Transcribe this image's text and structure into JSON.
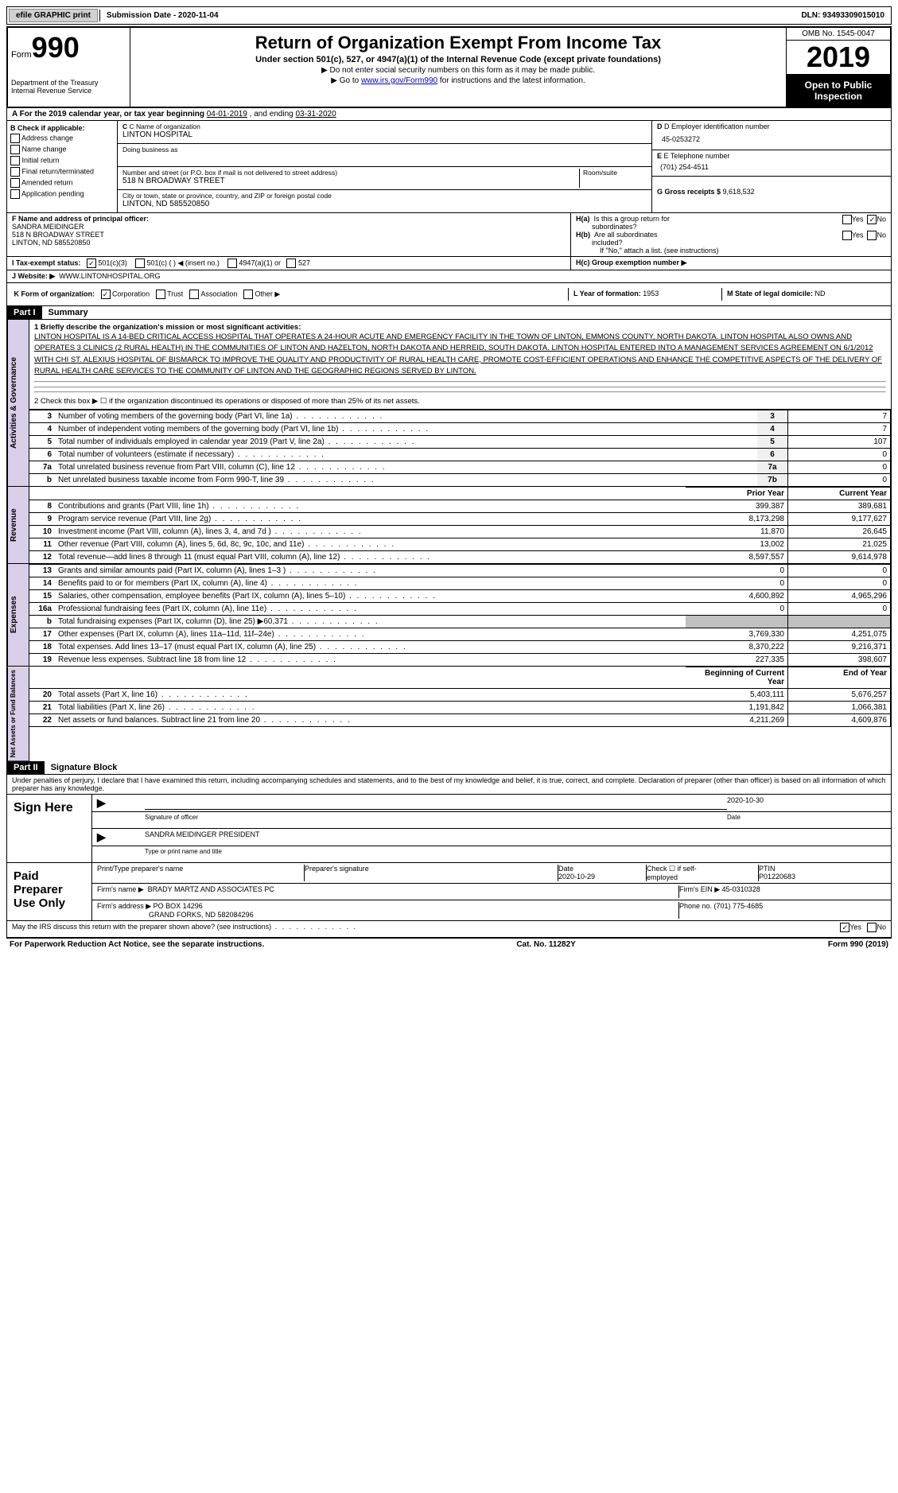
{
  "topbar": {
    "efile": "efile GRAPHIC print",
    "submission_label": "Submission Date - ",
    "submission_date": "2020-11-04",
    "dln_label": "DLN: ",
    "dln": "93493309015010"
  },
  "header": {
    "form_prefix": "Form",
    "form_number": "990",
    "dept": "Department of the Treasury\nInternal Revenue Service",
    "title": "Return of Organization Exempt From Income Tax",
    "subtitle": "Under section 501(c), 527, or 4947(a)(1) of the Internal Revenue Code (except private foundations)",
    "note1": "▶ Do not enter social security numbers on this form as it may be made public.",
    "note2_pre": "▶ Go to ",
    "note2_link": "www.irs.gov/Form990",
    "note2_post": " for instructions and the latest information.",
    "omb": "OMB No. 1545-0047",
    "year": "2019",
    "inspection": "Open to Public Inspection"
  },
  "rowA": {
    "prefix": "A For the 2019 calendar year, or tax year beginning ",
    "begin": "04-01-2019",
    "mid": "   , and ending ",
    "end": "03-31-2020"
  },
  "colB": {
    "header": "B Check if applicable:",
    "items": [
      "Address change",
      "Name change",
      "Initial return",
      "Final return/terminated",
      "Amended return",
      "Application pending"
    ]
  },
  "colC": {
    "name_label": "C Name of organization",
    "name": "LINTON HOSPITAL",
    "dba_label": "Doing business as",
    "dba": "",
    "street_label": "Number and street (or P.O. box if mail is not delivered to street address)",
    "street": "518 N BROADWAY STREET",
    "room_label": "Room/suite",
    "city_label": "City or town, state or province, country, and ZIP or foreign postal code",
    "city": "LINTON, ND  585520850"
  },
  "colD": {
    "ein_label": "D Employer identification number",
    "ein": "45-0253272",
    "phone_label": "E Telephone number",
    "phone": "(701) 254-4511",
    "gross_label": "G Gross receipts $ ",
    "gross": "9,618,532"
  },
  "rowF": {
    "label": "F  Name and address of principal officer:",
    "name": "SANDRA MEIDINGER",
    "street": "518 N BROADWAY STREET",
    "city": "LINTON, ND  585520850"
  },
  "rowH": {
    "ha_label": "H(a)  Is this a group return for subordinates?",
    "hb_label": "H(b)  Are all subordinates included?",
    "hb_note": "If \"No,\" attach a list. (see instructions)",
    "hc_label": "H(c)  Group exemption number ▶",
    "yes": "Yes",
    "no": "No"
  },
  "rowI": {
    "label": "I   Tax-exempt status:",
    "opt1": "501(c)(3)",
    "opt2": "501(c) (  ) ◀ (insert no.)",
    "opt3": "4947(a)(1) or",
    "opt4": "527"
  },
  "rowJ": {
    "label": "J   Website: ▶",
    "value": "WWW.LINTONHOSPITAL.ORG"
  },
  "rowK": {
    "label": "K Form of organization:",
    "opts": [
      "Corporation",
      "Trust",
      "Association",
      "Other ▶"
    ],
    "L_label": "L Year of formation: ",
    "L_val": "1953",
    "M_label": "M State of legal domicile: ",
    "M_val": "ND"
  },
  "part1": {
    "header": "Part I",
    "title": "Summary",
    "tab_ag": "Activities & Governance",
    "tab_rev": "Revenue",
    "tab_exp": "Expenses",
    "tab_net": "Net Assets or Fund Balances",
    "line1_label": "1   Briefly describe the organization's mission or most significant activities:",
    "mission": "LINTON HOSPITAL IS A 14-BED CRITICAL ACCESS HOSPITAL THAT OPERATES A 24-HOUR ACUTE AND EMERGENCY FACILITY IN THE TOWN OF LINTON, EMMONS COUNTY, NORTH DAKOTA. LINTON HOSPITAL ALSO OWNS AND OPERATES 3 CLINICS (2 RURAL HEALTH) IN THE COMMUNITIES OF LINTON AND HAZELTON, NORTH DAKOTA AND HERREID, SOUTH DAKOTA. LINTON HOSPITAL ENTERED INTO A MANAGEMENT SERVICES AGREEMENT ON 6/1/2012 WITH CHI ST. ALEXIUS HOSPITAL OF BISMARCK TO IMPROVE THE QUALITY AND PRODUCTIVITY OF RURAL HEALTH CARE, PROMOTE COST-EFFICIENT OPERATIONS AND ENHANCE THE COMPETITIVE ASPECTS OF THE DELIVERY OF RURAL HEALTH CARE SERVICES TO THE COMMUNITY OF LINTON AND THE GEOGRAPHIC REGIONS SERVED BY LINTON.",
    "line2": "2   Check this box ▶ ☐  if the organization discontinued its operations or disposed of more than 25% of its net assets.",
    "prior_year": "Prior Year",
    "current_year": "Current Year",
    "begin_year": "Beginning of Current Year",
    "end_year": "End of Year",
    "rows_ag": [
      {
        "n": "3",
        "d": "Number of voting members of the governing body (Part VI, line 1a)",
        "box": "3",
        "v": "7"
      },
      {
        "n": "4",
        "d": "Number of independent voting members of the governing body (Part VI, line 1b)",
        "box": "4",
        "v": "7"
      },
      {
        "n": "5",
        "d": "Total number of individuals employed in calendar year 2019 (Part V, line 2a)",
        "box": "5",
        "v": "107"
      },
      {
        "n": "6",
        "d": "Total number of volunteers (estimate if necessary)",
        "box": "6",
        "v": "0"
      },
      {
        "n": "7a",
        "d": "Total unrelated business revenue from Part VIII, column (C), line 12",
        "box": "7a",
        "v": "0"
      },
      {
        "n": "b",
        "d": "Net unrelated business taxable income from Form 990-T, line 39",
        "box": "7b",
        "v": "0"
      }
    ],
    "rows_rev": [
      {
        "n": "8",
        "d": "Contributions and grants (Part VIII, line 1h)",
        "p": "399,387",
        "c": "389,681"
      },
      {
        "n": "9",
        "d": "Program service revenue (Part VIII, line 2g)",
        "p": "8,173,298",
        "c": "9,177,627"
      },
      {
        "n": "10",
        "d": "Investment income (Part VIII, column (A), lines 3, 4, and 7d )",
        "p": "11,870",
        "c": "26,645"
      },
      {
        "n": "11",
        "d": "Other revenue (Part VIII, column (A), lines 5, 6d, 8c, 9c, 10c, and 11e)",
        "p": "13,002",
        "c": "21,025"
      },
      {
        "n": "12",
        "d": "Total revenue—add lines 8 through 11 (must equal Part VIII, column (A), line 12)",
        "p": "8,597,557",
        "c": "9,614,978"
      }
    ],
    "rows_exp": [
      {
        "n": "13",
        "d": "Grants and similar amounts paid (Part IX, column (A), lines 1–3 )",
        "p": "0",
        "c": "0"
      },
      {
        "n": "14",
        "d": "Benefits paid to or for members (Part IX, column (A), line 4)",
        "p": "0",
        "c": "0"
      },
      {
        "n": "15",
        "d": "Salaries, other compensation, employee benefits (Part IX, column (A), lines 5–10)",
        "p": "4,600,892",
        "c": "4,965,296"
      },
      {
        "n": "16a",
        "d": "Professional fundraising fees (Part IX, column (A), line 11e)",
        "p": "0",
        "c": "0"
      },
      {
        "n": "b",
        "d": "Total fundraising expenses (Part IX, column (D), line 25) ▶60,371",
        "p": "",
        "c": "",
        "shade": true
      },
      {
        "n": "17",
        "d": "Other expenses (Part IX, column (A), lines 11a–11d, 11f–24e)",
        "p": "3,769,330",
        "c": "4,251,075"
      },
      {
        "n": "18",
        "d": "Total expenses. Add lines 13–17 (must equal Part IX, column (A), line 25)",
        "p": "8,370,222",
        "c": "9,216,371"
      },
      {
        "n": "19",
        "d": "Revenue less expenses. Subtract line 18 from line 12",
        "p": "227,335",
        "c": "398,607"
      }
    ],
    "rows_net": [
      {
        "n": "20",
        "d": "Total assets (Part X, line 16)",
        "p": "5,403,111",
        "c": "5,676,257"
      },
      {
        "n": "21",
        "d": "Total liabilities (Part X, line 26)",
        "p": "1,191,842",
        "c": "1,066,381"
      },
      {
        "n": "22",
        "d": "Net assets or fund balances. Subtract line 21 from line 20",
        "p": "4,211,269",
        "c": "4,609,876"
      }
    ]
  },
  "part2": {
    "header": "Part II",
    "title": "Signature Block",
    "perjury": "Under penalties of perjury, I declare that I have examined this return, including accompanying schedules and statements, and to the best of my knowledge and belief, it is true, correct, and complete. Declaration of preparer (other than officer) is based on all information of which preparer has any knowledge.",
    "sign_here": "Sign Here",
    "sig_officer_label": "Signature of officer",
    "sig_date": "2020-10-30",
    "date_label": "Date",
    "officer_name": "SANDRA MEIDINGER  PRESIDENT",
    "officer_name_label": "Type or print name and title",
    "paid_prep": "Paid Preparer Use Only",
    "prep_name_label": "Print/Type preparer's name",
    "prep_sig_label": "Preparer's signature",
    "prep_date": "2020-10-29",
    "self_emp": "Check ☐ if self-employed",
    "ptin_label": "PTIN",
    "ptin": "P01220683",
    "firm_name_label": "Firm's name    ▶",
    "firm_name": "BRADY MARTZ AND ASSOCIATES PC",
    "firm_ein_label": "Firm's EIN ▶",
    "firm_ein": "45-0310328",
    "firm_addr_label": "Firm's address ▶",
    "firm_addr1": "PO BOX 14296",
    "firm_addr2": "GRAND FORKS, ND  582084296",
    "firm_phone_label": "Phone no. ",
    "firm_phone": "(701) 775-4685",
    "discuss": "May the IRS discuss this return with the preparer shown above? (see instructions)",
    "yes": "Yes",
    "no": "No"
  },
  "footer": {
    "left": "For Paperwork Reduction Act Notice, see the separate instructions.",
    "mid": "Cat. No. 11282Y",
    "right_pre": "Form ",
    "right_form": "990",
    "right_post": " (2019)"
  }
}
